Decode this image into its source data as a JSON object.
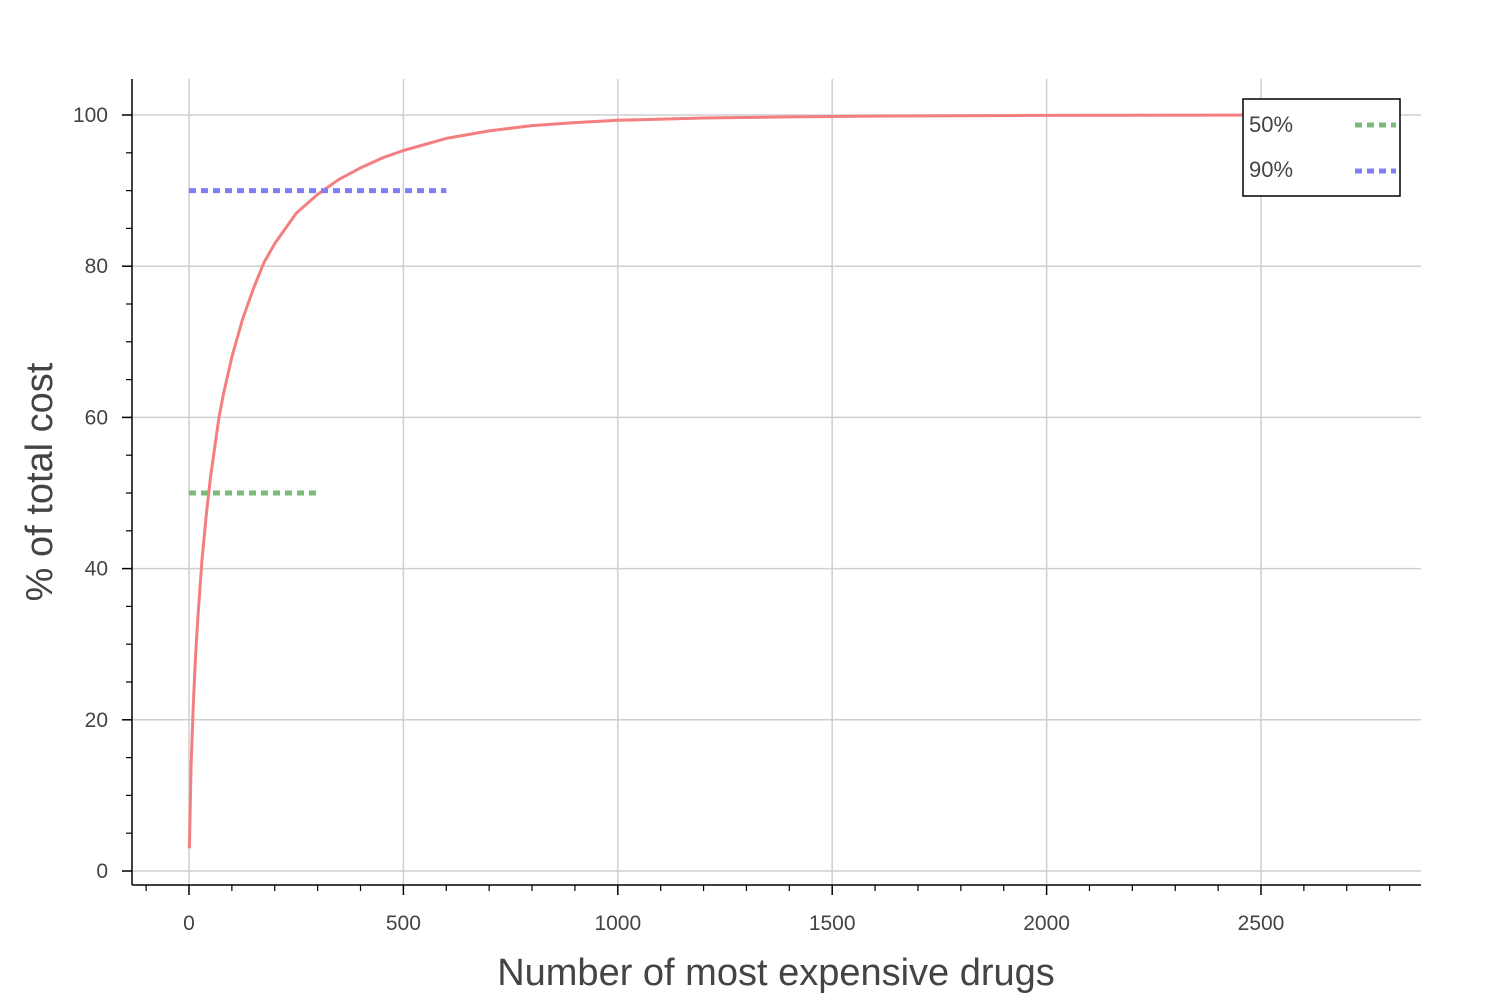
{
  "chart_data": {
    "type": "line",
    "title": "",
    "xlabel": "Number of most expensive drugs",
    "ylabel": "% of total cost",
    "xlim": [
      -100,
      2850
    ],
    "ylim": [
      -2,
      105
    ],
    "x_ticks": [
      0,
      500,
      1000,
      1500,
      2000,
      2500
    ],
    "y_ticks": [
      0,
      20,
      40,
      60,
      80,
      100
    ],
    "x_minor_step": 100,
    "y_minor_step": 5,
    "grid": true,
    "legend_position": "top-right",
    "series": [
      {
        "kind": "curve",
        "color": "#f47f7f",
        "dash": "solid",
        "x": [
          1,
          3,
          5,
          10,
          15,
          20,
          30,
          40,
          50,
          60,
          70,
          80,
          100,
          125,
          150,
          175,
          200,
          250,
          300,
          350,
          400,
          450,
          500,
          600,
          700,
          800,
          900,
          1000,
          1200,
          1400,
          1600,
          1800,
          2000,
          2200,
          2400,
          2500
        ],
        "y": [
          3,
          9,
          14,
          22,
          28,
          33,
          41,
          47,
          52,
          56,
          60,
          63,
          68,
          73,
          77,
          80.5,
          83,
          87,
          89.5,
          91.5,
          93,
          94.3,
          95.3,
          96.9,
          97.9,
          98.6,
          99.0,
          99.3,
          99.6,
          99.75,
          99.85,
          99.9,
          99.95,
          99.97,
          99.99,
          100
        ]
      },
      {
        "name": "50%",
        "kind": "reference",
        "color": "#7cba7c",
        "dash": "dotted",
        "x": [
          0,
          300
        ],
        "y": [
          50,
          50
        ]
      },
      {
        "name": "90%",
        "kind": "reference",
        "color": "#7f7ff4",
        "dash": "dotted",
        "x": [
          0,
          600
        ],
        "y": [
          90,
          90
        ]
      }
    ]
  }
}
